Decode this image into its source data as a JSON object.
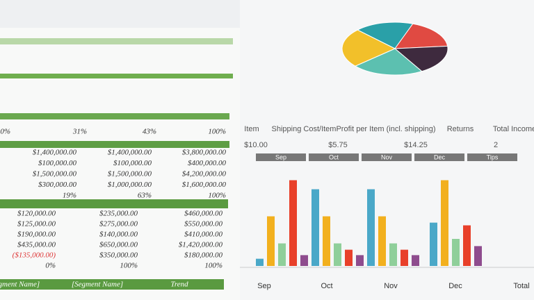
{
  "left_sheet": {
    "percent_row": [
      "0%",
      "31%",
      "43%",
      "100%"
    ],
    "block_1": [
      [
        "$1,400,000.00",
        "$1,400,000.00",
        "$3,800,000.00"
      ],
      [
        "$100,000.00",
        "$100,000.00",
        "$400,000.00"
      ],
      [
        "$1,500,000.00",
        "$1,500,000.00",
        "$4,200,000.00"
      ],
      [
        "$300,000.00",
        "$1,000,000.00",
        "$1,600,000.00"
      ],
      [
        "19%",
        "63%",
        "100%"
      ]
    ],
    "block_2": [
      [
        "$120,000.00",
        "$235,000.00",
        "$460,000.00"
      ],
      [
        "$125,000.00",
        "$275,000.00",
        "$550,000.00"
      ],
      [
        "$190,000.00",
        "$140,000.00",
        "$410,000.00"
      ],
      [
        "$435,000.00",
        "$650,000.00",
        "$1,420,000.00"
      ],
      [
        "($135,000.00)",
        "$350,000.00",
        "$180,000.00"
      ],
      [
        "0%",
        "100%",
        "100%"
      ]
    ],
    "footer_headers": [
      "[Segment Name]",
      "[Segment Name]",
      "Trend"
    ]
  },
  "right_sheet": {
    "headers": [
      "Item",
      "Shipping Cost/Item",
      "Profit per Item (incl. shipping)",
      "Returns",
      "Total Income"
    ],
    "row": [
      "$10.00",
      "$5.75",
      "$14.25",
      "2"
    ],
    "month_bar": [
      "Sep",
      "Oct",
      "Nov",
      "Dec",
      "Tips"
    ],
    "bottom_labels": [
      "Sep",
      "Oct",
      "Nov",
      "Dec",
      "Total"
    ],
    "bar_colors": [
      "#4aa8c8",
      "#f2b01e",
      "#8fcf9a",
      "#e8402a",
      "#8e4c8e"
    ],
    "bar_groups": [
      [
        8,
        55,
        25,
        95,
        12
      ],
      [
        85,
        55,
        25,
        18,
        12
      ],
      [
        85,
        55,
        25,
        18,
        12
      ],
      [
        48,
        95,
        30,
        45,
        22
      ]
    ],
    "pie": {
      "values": [
        18,
        18,
        18,
        22,
        24
      ],
      "colors": [
        "#2aa0a8",
        "#e04a42",
        "#3e2a3e",
        "#5cc0b0",
        "#f2c02a"
      ]
    }
  }
}
